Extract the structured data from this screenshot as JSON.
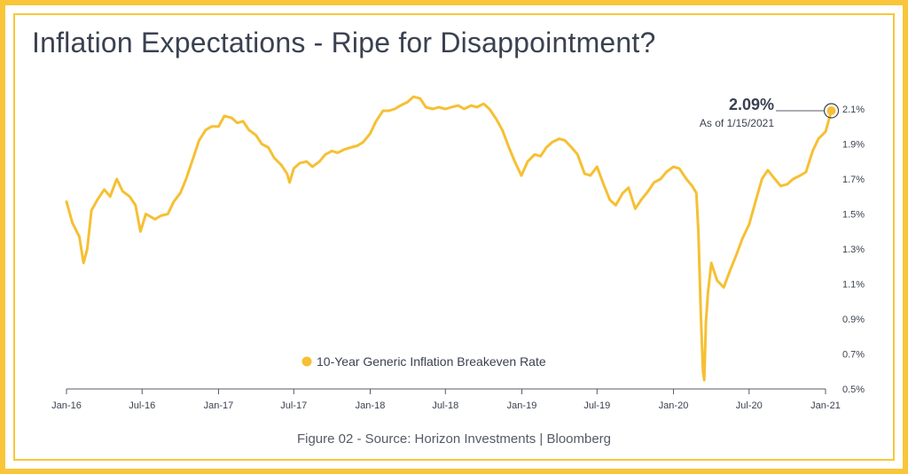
{
  "page": {
    "title": "Inflation Expectations - Ripe for Disappointment?",
    "caption": "Figure 02 - Source: Horizon Investments | Bloomberg",
    "accent_color": "#f9c63a",
    "line_color": "#f6c034"
  },
  "chart_data": {
    "type": "line",
    "title": "Inflation Expectations - Ripe for Disappointment?",
    "xlabel": "",
    "ylabel": "",
    "legend_position": "bottom-center",
    "grid": false,
    "y_axis_position": "right",
    "ylim": [
      0.5,
      2.2
    ],
    "xlim": [
      "2016-01-01",
      "2021-01-15"
    ],
    "x_ticks": [
      "Jan-16",
      "Jul-16",
      "Jan-17",
      "Jul-17",
      "Jan-18",
      "Jul-18",
      "Jan-19",
      "Jul-19",
      "Jan-20",
      "Jul-20",
      "Jan-21"
    ],
    "y_ticks": [
      0.5,
      0.7,
      0.9,
      1.1,
      1.3,
      1.5,
      1.7,
      1.9,
      2.1
    ],
    "y_tick_labels": [
      "0.5%",
      "0.7%",
      "0.9%",
      "1.1%",
      "1.3%",
      "1.5%",
      "1.7%",
      "1.9%",
      "2.1%"
    ],
    "annotation": {
      "value": "2.09%",
      "subtext": "As of 1/15/2021",
      "date": "2021-01-15",
      "y": 2.09
    },
    "series": [
      {
        "name": "10-Year Generic Inflation Breakeven Rate",
        "color": "#f6c034",
        "x": [
          "2016-01-01",
          "2016-01-15",
          "2016-02-01",
          "2016-02-11",
          "2016-02-20",
          "2016-03-01",
          "2016-03-15",
          "2016-04-01",
          "2016-04-15",
          "2016-05-01",
          "2016-05-15",
          "2016-06-01",
          "2016-06-15",
          "2016-06-27",
          "2016-07-10",
          "2016-08-01",
          "2016-08-15",
          "2016-09-01",
          "2016-09-15",
          "2016-10-01",
          "2016-10-15",
          "2016-11-01",
          "2016-11-15",
          "2016-12-01",
          "2016-12-15",
          "2017-01-01",
          "2017-01-15",
          "2017-02-01",
          "2017-02-15",
          "2017-03-01",
          "2017-03-15",
          "2017-04-01",
          "2017-04-15",
          "2017-05-01",
          "2017-05-15",
          "2017-06-01",
          "2017-06-15",
          "2017-06-21",
          "2017-07-01",
          "2017-07-15",
          "2017-08-01",
          "2017-08-15",
          "2017-09-01",
          "2017-09-15",
          "2017-10-01",
          "2017-10-15",
          "2017-11-01",
          "2017-11-15",
          "2017-12-01",
          "2017-12-15",
          "2018-01-01",
          "2018-01-15",
          "2018-02-01",
          "2018-02-15",
          "2018-03-01",
          "2018-03-15",
          "2018-04-01",
          "2018-04-15",
          "2018-05-01",
          "2018-05-15",
          "2018-06-01",
          "2018-06-15",
          "2018-07-01",
          "2018-07-15",
          "2018-08-01",
          "2018-08-15",
          "2018-09-01",
          "2018-09-15",
          "2018-10-01",
          "2018-10-15",
          "2018-11-01",
          "2018-11-15",
          "2018-12-01",
          "2018-12-15",
          "2018-12-31",
          "2019-01-15",
          "2019-02-01",
          "2019-02-15",
          "2019-03-01",
          "2019-03-15",
          "2019-04-01",
          "2019-04-15",
          "2019-05-01",
          "2019-05-15",
          "2019-06-01",
          "2019-06-15",
          "2019-07-01",
          "2019-07-15",
          "2019-08-01",
          "2019-08-15",
          "2019-09-01",
          "2019-09-15",
          "2019-10-01",
          "2019-10-15",
          "2019-11-01",
          "2019-11-15",
          "2019-12-01",
          "2019-12-15",
          "2020-01-01",
          "2020-01-15",
          "2020-02-01",
          "2020-02-15",
          "2020-02-25",
          "2020-03-01",
          "2020-03-07",
          "2020-03-12",
          "2020-03-15",
          "2020-03-19",
          "2020-03-24",
          "2020-04-01",
          "2020-04-15",
          "2020-05-01",
          "2020-05-15",
          "2020-06-01",
          "2020-06-15",
          "2020-07-01",
          "2020-07-15",
          "2020-08-01",
          "2020-08-15",
          "2020-09-01",
          "2020-09-15",
          "2020-10-01",
          "2020-10-15",
          "2020-11-01",
          "2020-11-15",
          "2020-12-01",
          "2020-12-15",
          "2021-01-01",
          "2021-01-15"
        ],
        "values": [
          1.57,
          1.45,
          1.37,
          1.22,
          1.3,
          1.52,
          1.58,
          1.64,
          1.6,
          1.7,
          1.63,
          1.6,
          1.55,
          1.4,
          1.5,
          1.47,
          1.49,
          1.5,
          1.57,
          1.62,
          1.7,
          1.82,
          1.92,
          1.98,
          2.0,
          2.0,
          2.06,
          2.05,
          2.02,
          2.03,
          1.98,
          1.95,
          1.9,
          1.88,
          1.82,
          1.78,
          1.73,
          1.68,
          1.76,
          1.79,
          1.8,
          1.77,
          1.8,
          1.84,
          1.86,
          1.85,
          1.87,
          1.88,
          1.89,
          1.91,
          1.96,
          2.03,
          2.09,
          2.09,
          2.1,
          2.12,
          2.14,
          2.17,
          2.16,
          2.11,
          2.1,
          2.11,
          2.1,
          2.11,
          2.12,
          2.1,
          2.12,
          2.11,
          2.13,
          2.1,
          2.04,
          1.98,
          1.88,
          1.8,
          1.72,
          1.8,
          1.84,
          1.83,
          1.88,
          1.91,
          1.93,
          1.92,
          1.88,
          1.84,
          1.73,
          1.72,
          1.77,
          1.68,
          1.58,
          1.55,
          1.62,
          1.65,
          1.53,
          1.58,
          1.63,
          1.68,
          1.7,
          1.74,
          1.77,
          1.76,
          1.7,
          1.66,
          1.62,
          1.4,
          0.92,
          0.6,
          0.55,
          0.88,
          1.05,
          1.22,
          1.12,
          1.08,
          1.17,
          1.27,
          1.36,
          1.44,
          1.56,
          1.7,
          1.75,
          1.7,
          1.66,
          1.67,
          1.7,
          1.72,
          1.74,
          1.86,
          1.93,
          1.97,
          2.09
        ]
      }
    ]
  }
}
